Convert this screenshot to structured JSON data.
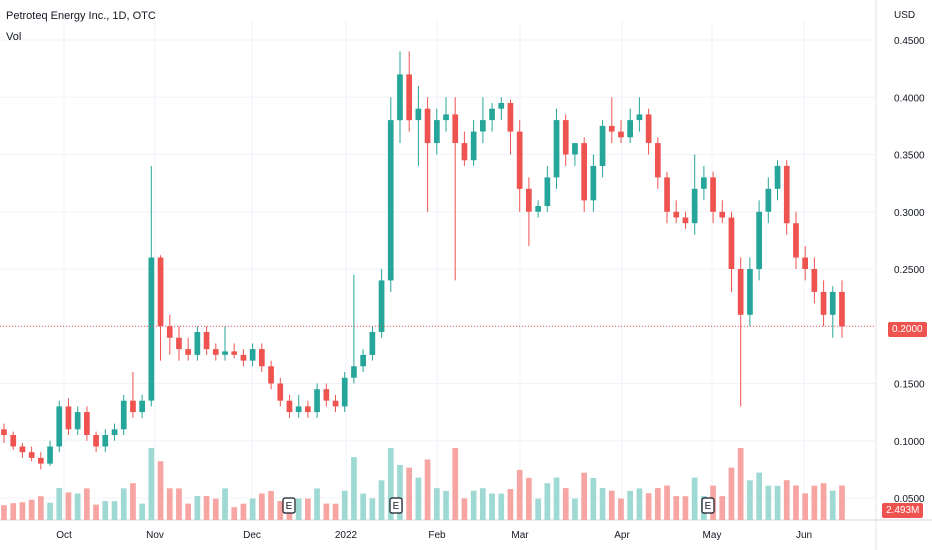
{
  "header": {
    "title": "Petroteq Energy Inc., 1D, OTC",
    "vol_label": "Vol",
    "currency": "USD"
  },
  "price_tag": "0.2000",
  "volume_tag": "2.493M",
  "colors": {
    "up": "#26a69a",
    "down": "#ef5350",
    "up_vol": "#9fd9d3",
    "down_vol": "#f6a5a3",
    "grid": "#f0f3fa"
  },
  "chart_data": {
    "type": "candlestick",
    "title": "Petroteq Energy Inc., 1D, OTC",
    "ylabel": "USD",
    "ylim": [
      0.05,
      0.46
    ],
    "y_ticks": [
      "0.4500",
      "0.4000",
      "0.3500",
      "0.3000",
      "0.2500",
      "0.2000",
      "0.1500",
      "0.1000",
      "0.0500"
    ],
    "x_ticks": [
      "Oct",
      "Nov",
      "Dec",
      "2022",
      "Feb",
      "Mar",
      "Apr",
      "May",
      "Jun"
    ],
    "earnings_markers": [
      "E",
      "E",
      "E"
    ],
    "last_price": 0.2,
    "last_volume": "2.493M",
    "series": [
      {
        "name": "Petroteq Energy Inc.",
        "ohlc": [
          [
            0.11,
            0.115,
            0.098,
            0.105
          ],
          [
            0.105,
            0.108,
            0.092,
            0.095
          ],
          [
            0.095,
            0.098,
            0.085,
            0.09
          ],
          [
            0.09,
            0.095,
            0.082,
            0.085
          ],
          [
            0.085,
            0.09,
            0.075,
            0.08
          ],
          [
            0.08,
            0.1,
            0.078,
            0.095
          ],
          [
            0.095,
            0.135,
            0.09,
            0.13
          ],
          [
            0.13,
            0.137,
            0.105,
            0.11
          ],
          [
            0.11,
            0.13,
            0.105,
            0.125
          ],
          [
            0.125,
            0.13,
            0.1,
            0.105
          ],
          [
            0.105,
            0.108,
            0.09,
            0.095
          ],
          [
            0.095,
            0.11,
            0.09,
            0.105
          ],
          [
            0.105,
            0.115,
            0.1,
            0.11
          ],
          [
            0.11,
            0.14,
            0.105,
            0.135
          ],
          [
            0.135,
            0.16,
            0.12,
            0.125
          ],
          [
            0.125,
            0.14,
            0.12,
            0.135
          ],
          [
            0.135,
            0.34,
            0.13,
            0.26
          ],
          [
            0.26,
            0.262,
            0.17,
            0.2
          ],
          [
            0.2,
            0.21,
            0.175,
            0.19
          ],
          [
            0.19,
            0.2,
            0.17,
            0.18
          ],
          [
            0.18,
            0.19,
            0.17,
            0.175
          ],
          [
            0.175,
            0.2,
            0.17,
            0.195
          ],
          [
            0.195,
            0.2,
            0.175,
            0.18
          ],
          [
            0.18,
            0.185,
            0.17,
            0.175
          ],
          [
            0.175,
            0.2,
            0.17,
            0.178
          ],
          [
            0.178,
            0.185,
            0.172,
            0.175
          ],
          [
            0.175,
            0.18,
            0.165,
            0.17
          ],
          [
            0.17,
            0.185,
            0.165,
            0.18
          ],
          [
            0.18,
            0.185,
            0.16,
            0.165
          ],
          [
            0.165,
            0.17,
            0.145,
            0.15
          ],
          [
            0.15,
            0.155,
            0.13,
            0.135
          ],
          [
            0.135,
            0.14,
            0.12,
            0.125
          ],
          [
            0.125,
            0.14,
            0.12,
            0.13
          ],
          [
            0.13,
            0.135,
            0.12,
            0.125
          ],
          [
            0.125,
            0.15,
            0.12,
            0.145
          ],
          [
            0.145,
            0.15,
            0.13,
            0.135
          ],
          [
            0.135,
            0.14,
            0.125,
            0.13
          ],
          [
            0.13,
            0.16,
            0.125,
            0.155
          ],
          [
            0.155,
            0.245,
            0.15,
            0.165
          ],
          [
            0.165,
            0.18,
            0.16,
            0.175
          ],
          [
            0.175,
            0.2,
            0.17,
            0.195
          ],
          [
            0.195,
            0.25,
            0.19,
            0.24
          ],
          [
            0.24,
            0.4,
            0.23,
            0.38
          ],
          [
            0.38,
            0.44,
            0.36,
            0.42
          ],
          [
            0.42,
            0.44,
            0.37,
            0.38
          ],
          [
            0.38,
            0.41,
            0.34,
            0.39
          ],
          [
            0.39,
            0.4,
            0.3,
            0.36
          ],
          [
            0.36,
            0.39,
            0.35,
            0.38
          ],
          [
            0.38,
            0.4,
            0.37,
            0.385
          ],
          [
            0.385,
            0.4,
            0.24,
            0.36
          ],
          [
            0.36,
            0.37,
            0.34,
            0.345
          ],
          [
            0.345,
            0.38,
            0.34,
            0.37
          ],
          [
            0.37,
            0.4,
            0.36,
            0.38
          ],
          [
            0.38,
            0.395,
            0.37,
            0.39
          ],
          [
            0.39,
            0.4,
            0.38,
            0.395
          ],
          [
            0.395,
            0.398,
            0.35,
            0.37
          ],
          [
            0.37,
            0.38,
            0.3,
            0.32
          ],
          [
            0.32,
            0.33,
            0.27,
            0.3
          ],
          [
            0.3,
            0.31,
            0.295,
            0.305
          ],
          [
            0.305,
            0.34,
            0.3,
            0.33
          ],
          [
            0.33,
            0.39,
            0.32,
            0.38
          ],
          [
            0.38,
            0.385,
            0.34,
            0.35
          ],
          [
            0.35,
            0.36,
            0.34,
            0.36
          ],
          [
            0.36,
            0.365,
            0.3,
            0.31
          ],
          [
            0.31,
            0.35,
            0.3,
            0.34
          ],
          [
            0.34,
            0.38,
            0.33,
            0.375
          ],
          [
            0.375,
            0.4,
            0.36,
            0.37
          ],
          [
            0.37,
            0.38,
            0.36,
            0.365
          ],
          [
            0.365,
            0.39,
            0.36,
            0.38
          ],
          [
            0.38,
            0.4,
            0.37,
            0.385
          ],
          [
            0.385,
            0.39,
            0.35,
            0.36
          ],
          [
            0.36,
            0.365,
            0.32,
            0.33
          ],
          [
            0.33,
            0.335,
            0.29,
            0.3
          ],
          [
            0.3,
            0.31,
            0.29,
            0.295
          ],
          [
            0.295,
            0.3,
            0.285,
            0.29
          ],
          [
            0.29,
            0.35,
            0.28,
            0.32
          ],
          [
            0.32,
            0.34,
            0.31,
            0.33
          ],
          [
            0.33,
            0.335,
            0.29,
            0.3
          ],
          [
            0.3,
            0.31,
            0.29,
            0.295
          ],
          [
            0.295,
            0.3,
            0.23,
            0.25
          ],
          [
            0.25,
            0.26,
            0.13,
            0.21
          ],
          [
            0.21,
            0.26,
            0.2,
            0.25
          ],
          [
            0.25,
            0.31,
            0.24,
            0.3
          ],
          [
            0.3,
            0.33,
            0.29,
            0.32
          ],
          [
            0.32,
            0.345,
            0.31,
            0.34
          ],
          [
            0.34,
            0.345,
            0.28,
            0.29
          ],
          [
            0.29,
            0.3,
            0.25,
            0.26
          ],
          [
            0.26,
            0.27,
            0.24,
            0.25
          ],
          [
            0.25,
            0.26,
            0.22,
            0.23
          ],
          [
            0.23,
            0.24,
            0.2,
            0.21
          ],
          [
            0.21,
            0.235,
            0.19,
            0.23
          ],
          [
            0.23,
            0.24,
            0.19,
            0.2
          ]
        ]
      }
    ]
  }
}
